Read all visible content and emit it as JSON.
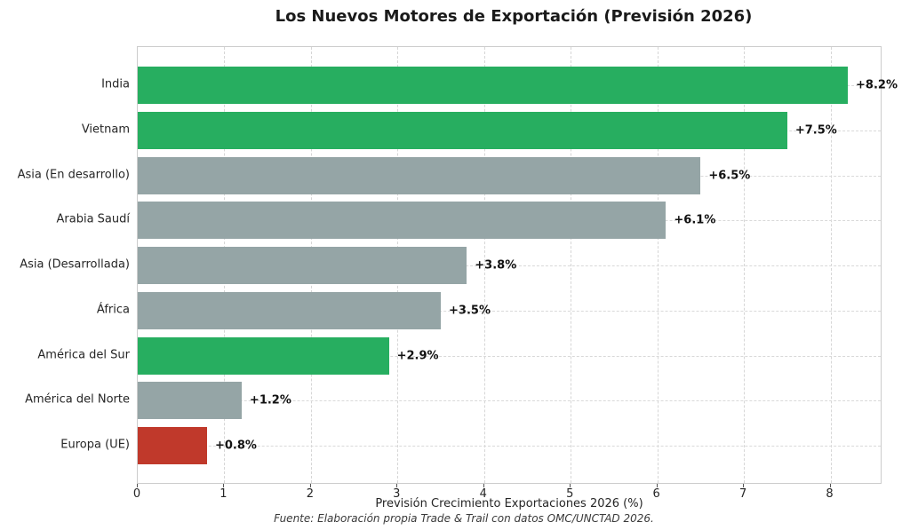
{
  "title": "Los Nuevos Motores de Exportación (Previsión 2026)",
  "chart_data": {
    "type": "bar",
    "orientation": "horizontal",
    "title": "Los Nuevos Motores de Exportación (Previsión 2026)",
    "categories": [
      "India",
      "Vietnam",
      "Asia (En desarrollo)",
      "Arabia Saudí",
      "Asia (Desarrollada)",
      "África",
      "América del Sur",
      "América del Norte",
      "Europa (UE)"
    ],
    "values": [
      8.2,
      7.5,
      6.5,
      6.1,
      3.8,
      3.5,
      2.9,
      1.2,
      0.8
    ],
    "bar_labels": [
      "+8.2%",
      "+7.5%",
      "+6.5%",
      "+6.1%",
      "+3.8%",
      "+3.5%",
      "+2.9%",
      "+1.2%",
      "+0.8%"
    ],
    "bar_colors": [
      "#27ae60",
      "#27ae60",
      "#95a5a6",
      "#95a5a6",
      "#95a5a6",
      "#95a5a6",
      "#27ae60",
      "#95a5a6",
      "#c0392b"
    ],
    "xlabel": "Previsión Crecimiento Exportaciones 2026 (%)",
    "x_ticks": [
      0,
      1,
      2,
      3,
      4,
      5,
      6,
      7,
      8
    ],
    "x_tick_labels": [
      "0",
      "1",
      "2",
      "3",
      "4",
      "5",
      "6",
      "7",
      "8"
    ],
    "xlim": [
      0,
      8.6
    ],
    "grid": true,
    "grid_style": "dashed",
    "legend": null,
    "source_note": "Fuente: Elaboración propia Trade & Trail con datos OMC/UNCTAD 2026."
  },
  "colors": {
    "positive_highlight": "#27ae60",
    "neutral": "#95a5a6",
    "negative_highlight": "#c0392b",
    "grid": "#d6d6d6",
    "spine": "#cccccc",
    "text": "#262626",
    "background": "#ffffff"
  }
}
